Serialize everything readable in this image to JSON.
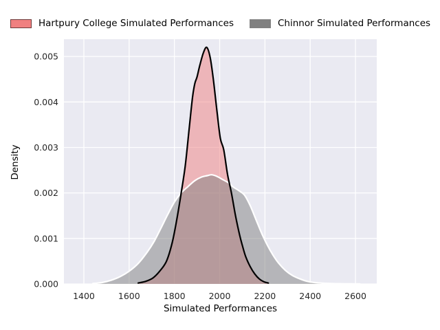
{
  "figure": {
    "background": "#ffffff",
    "axes_background": "#eaeaf2",
    "grid_color": "#ffffff",
    "tick_label_color": "#262626",
    "text_color": "#000000"
  },
  "legend": {
    "position": "top",
    "entries": [
      {
        "label": "Hartpury College Simulated Performances",
        "fill": "#f08080",
        "edge": "rgba(0,0,0,0.55)"
      },
      {
        "label": "Chinnor Simulated Performances",
        "fill": "#808080",
        "edge": "rgba(128,128,128,1)"
      }
    ]
  },
  "chart_data": {
    "type": "area",
    "subtype": "kde-density",
    "title": "",
    "xlabel": "Simulated Performances",
    "ylabel": "Density",
    "xlim": [
      1312,
      2694
    ],
    "ylim": [
      0,
      0.00538
    ],
    "xticks": [
      1400,
      1600,
      1800,
      2000,
      2200,
      2400,
      2600
    ],
    "ytick_values": [
      0,
      0.001,
      0.002,
      0.003,
      0.004,
      0.005
    ],
    "ytick_labels": [
      "0.000",
      "0.001",
      "0.002",
      "0.003",
      "0.004",
      "0.005"
    ],
    "grid": true,
    "legend_position": "top",
    "series": [
      {
        "name": "Hartpury College Simulated Performances",
        "fill": "#f08080",
        "fill_opacity": 0.5,
        "stroke": "#000000",
        "stroke_width": 2.2,
        "points": [
          [
            1640,
            2e-05
          ],
          [
            1675,
            6e-05
          ],
          [
            1705,
            0.00013
          ],
          [
            1735,
            0.00028
          ],
          [
            1765,
            0.0005
          ],
          [
            1790,
            0.0009
          ],
          [
            1810,
            0.0014
          ],
          [
            1830,
            0.002
          ],
          [
            1848,
            0.0026
          ],
          [
            1865,
            0.0034
          ],
          [
            1880,
            0.0041
          ],
          [
            1890,
            0.0044
          ],
          [
            1900,
            0.00455
          ],
          [
            1912,
            0.0048
          ],
          [
            1928,
            0.00508
          ],
          [
            1943,
            0.0052
          ],
          [
            1958,
            0.00498
          ],
          [
            1972,
            0.0045
          ],
          [
            1988,
            0.0038
          ],
          [
            2003,
            0.0032
          ],
          [
            2018,
            0.00295
          ],
          [
            2035,
            0.0024
          ],
          [
            2052,
            0.002
          ],
          [
            2070,
            0.0015
          ],
          [
            2088,
            0.00108
          ],
          [
            2100,
            0.00085
          ],
          [
            2115,
            0.0006
          ],
          [
            2135,
            0.00038
          ],
          [
            2155,
            0.00022
          ],
          [
            2175,
            0.00011
          ],
          [
            2195,
            5e-05
          ],
          [
            2215,
            2e-05
          ]
        ]
      },
      {
        "name": "Chinnor Simulated Performances",
        "fill": "#808080",
        "fill_opacity": 0.5,
        "stroke": "#ffffff",
        "stroke_width": 2.2,
        "points": [
          [
            1440,
            1e-05
          ],
          [
            1480,
            3e-05
          ],
          [
            1520,
            8e-05
          ],
          [
            1560,
            0.00016
          ],
          [
            1600,
            0.00028
          ],
          [
            1640,
            0.00045
          ],
          [
            1680,
            0.0007
          ],
          [
            1710,
            0.00093
          ],
          [
            1740,
            0.00122
          ],
          [
            1770,
            0.00152
          ],
          [
            1800,
            0.0018
          ],
          [
            1830,
            0.002
          ],
          [
            1860,
            0.00214
          ],
          [
            1890,
            0.00227
          ],
          [
            1920,
            0.00235
          ],
          [
            1945,
            0.00238
          ],
          [
            1965,
            0.0024
          ],
          [
            1990,
            0.00236
          ],
          [
            2015,
            0.00229
          ],
          [
            2040,
            0.00222
          ],
          [
            2060,
            0.00213
          ],
          [
            2085,
            0.00205
          ],
          [
            2110,
            0.00195
          ],
          [
            2135,
            0.00172
          ],
          [
            2160,
            0.00142
          ],
          [
            2185,
            0.00112
          ],
          [
            2210,
            0.00086
          ],
          [
            2235,
            0.00064
          ],
          [
            2260,
            0.00046
          ],
          [
            2290,
            0.0003
          ],
          [
            2320,
            0.00019
          ],
          [
            2350,
            0.00012
          ],
          [
            2385,
            6e-05
          ],
          [
            2420,
            3e-05
          ],
          [
            2460,
            1.5e-05
          ],
          [
            2510,
            7e-06
          ],
          [
            2560,
            3e-06
          ],
          [
            2620,
            1e-06
          ]
        ]
      }
    ]
  }
}
